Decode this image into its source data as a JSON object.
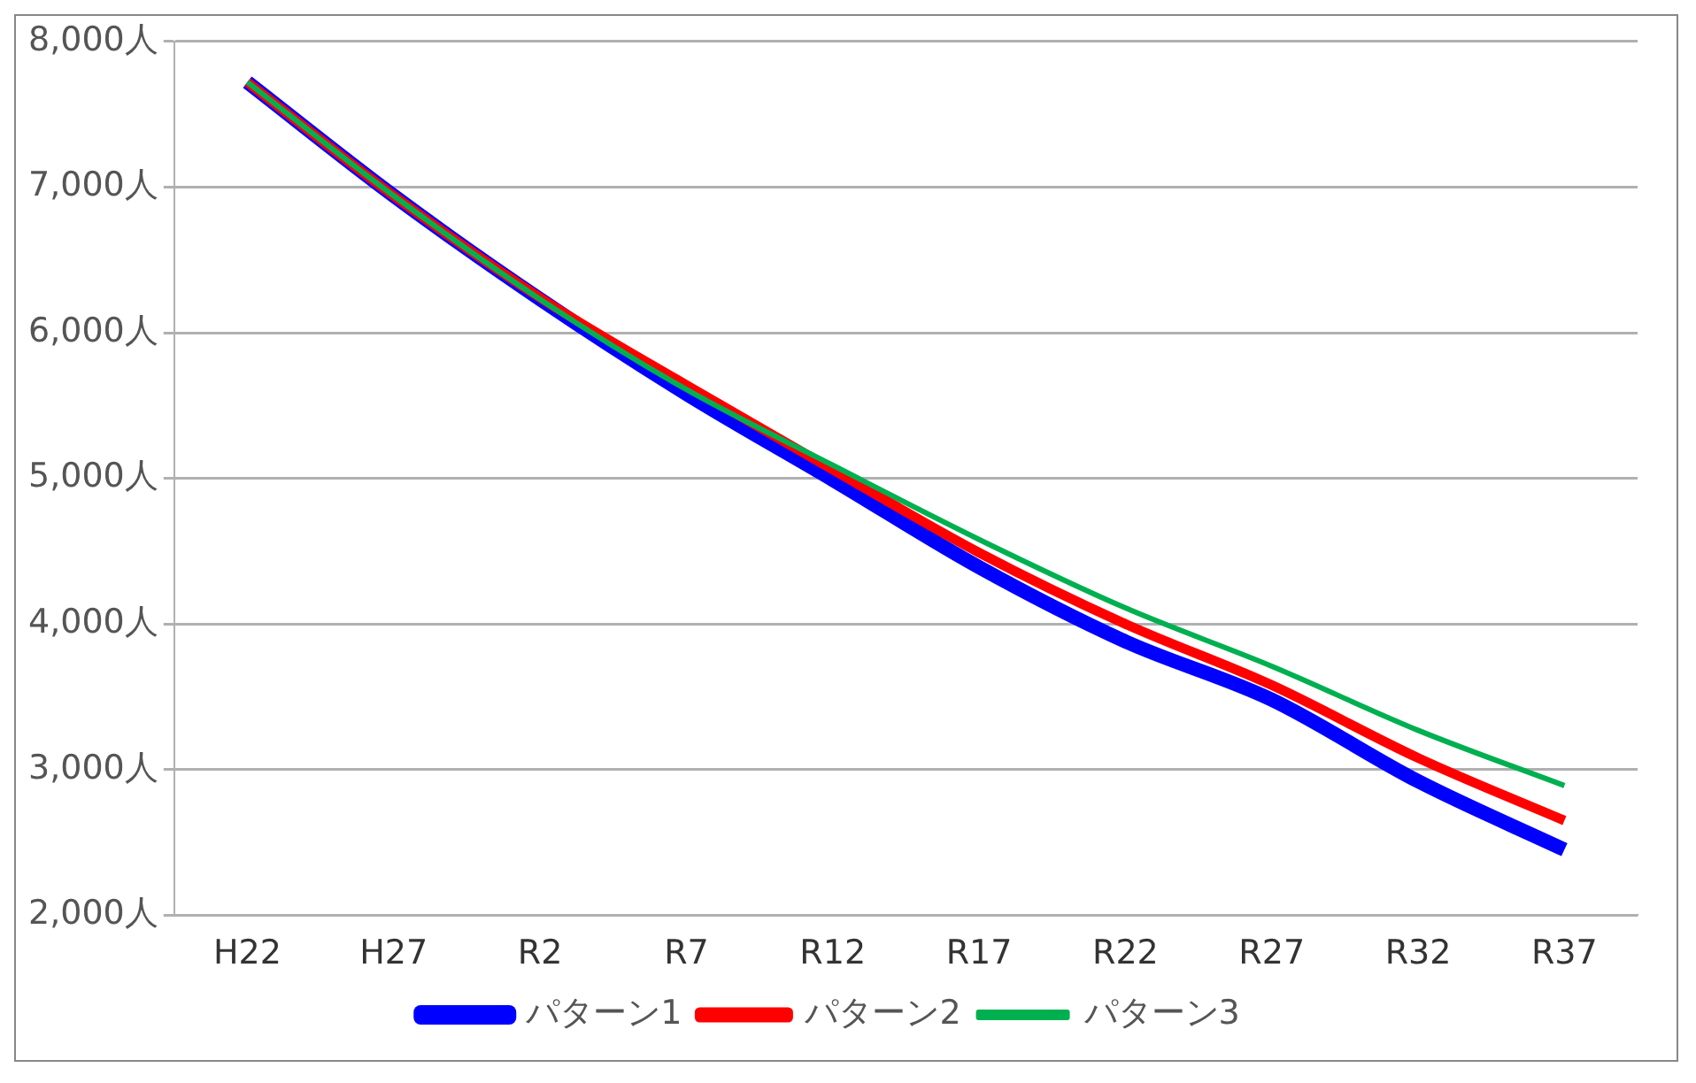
{
  "chart_data": {
    "type": "line",
    "categories": [
      "H22",
      "H27",
      "R2",
      "R7",
      "R12",
      "R17",
      "R22",
      "R27",
      "R32",
      "R37"
    ],
    "series": [
      {
        "name": "パターン1",
        "color": "#0000ff",
        "values": [
          7720,
          6940,
          6230,
          5580,
          4990,
          4390,
          3880,
          3480,
          2920,
          2450
        ]
      },
      {
        "name": "パターン2",
        "color": "#ff0000",
        "values": [
          7720,
          6940,
          6240,
          5640,
          5060,
          4490,
          4000,
          3580,
          3080,
          2650
        ]
      },
      {
        "name": "パターン3",
        "color": "#00b050",
        "values": [
          7720,
          6940,
          6230,
          5610,
          5090,
          4580,
          4110,
          3710,
          3270,
          2890
        ]
      }
    ],
    "ylim": [
      2000,
      8000
    ],
    "yticks": [
      {
        "value": 2000,
        "label": "2,000人"
      },
      {
        "value": 3000,
        "label": "3,000人"
      },
      {
        "value": 4000,
        "label": "4,000人"
      },
      {
        "value": 5000,
        "label": "5,000人"
      },
      {
        "value": 6000,
        "label": "6,000人"
      },
      {
        "value": 7000,
        "label": "7,000人"
      },
      {
        "value": 8000,
        "label": "8,000人"
      }
    ],
    "grid": "y",
    "legend": "bottom",
    "marker": "none",
    "line_style": "solid"
  }
}
